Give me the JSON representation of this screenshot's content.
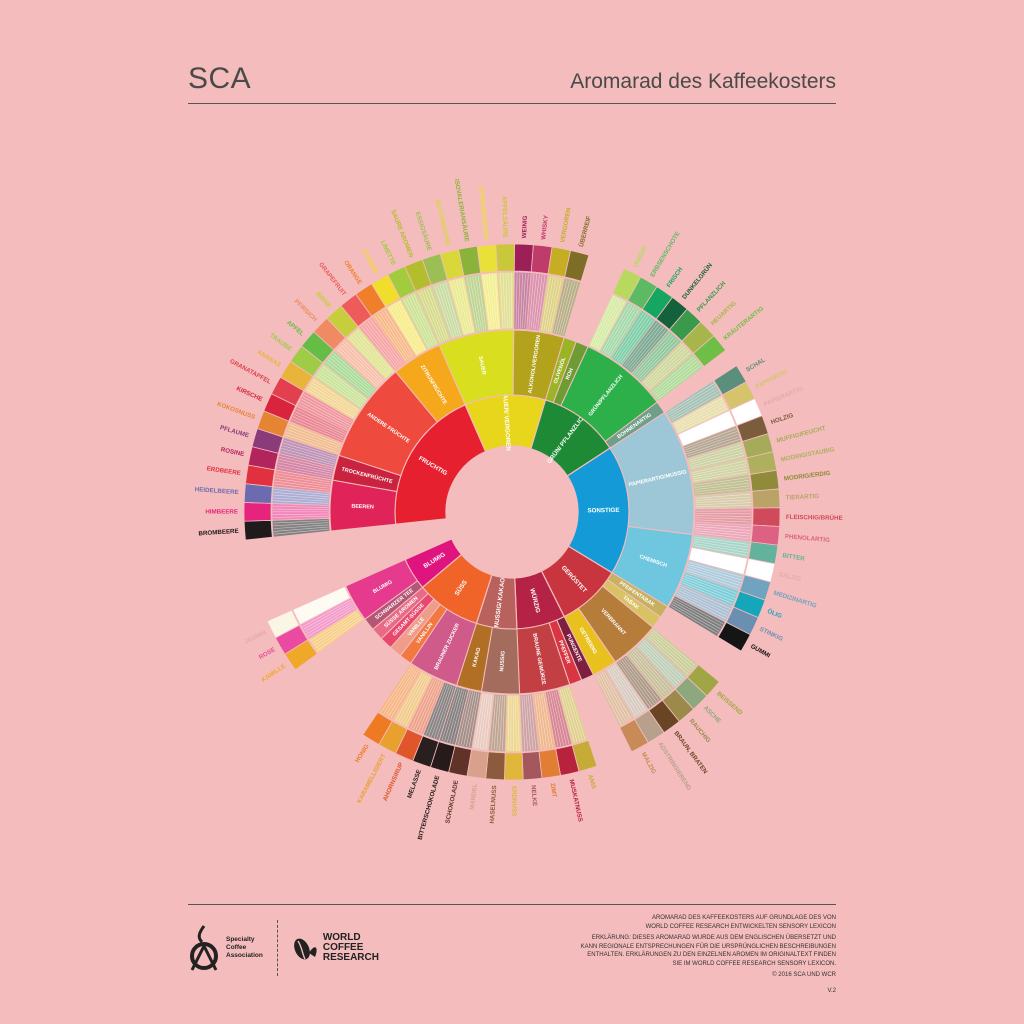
{
  "header": {
    "org": "SCA",
    "title": "Aromarad des Kaffeekosters"
  },
  "footer": {
    "sca_logo_text": [
      "Specialty",
      "Coffee",
      "Association"
    ],
    "wcr_logo_text": [
      "WORLD",
      "COFFEE",
      "RESEARCH"
    ],
    "lines": [
      "AROMARAD DES KAFFEEKOSTERS AUF GRUNDLAGE DES VON",
      "WORLD COFFEE RESEARCH ENTWICKELTEN SENSORY LEXICON"
    ],
    "explanation": [
      "ERKLÄRUNG: DIESES AROMARAD WURDE AUS DEM ENGLISCHEN ÜBERSETZT UND",
      "KANN REGIONALE ENTSPRECHUNGEN FÜR DIE URSPRÜNGLICHEN BESCHREIBUNGEN",
      "ENTHALTEN. ERKLÄRUNGEN ZU DEN EINZELNEN AROMEN IM ORIGINALTEXT FINDEN",
      "SIE IM WORLD COFFEE RESEARCH SENSORY LEXICON."
    ],
    "copyright": "© 2016 SCA UND WCR",
    "version": "V.2"
  },
  "wheel": [
    {
      "name": "FRUCHTIG",
      "color": "#e6202f",
      "children": [
        {
          "name": "BEEREN",
          "color": "#e0245a",
          "children": [
            {
              "name": "BROMBEERE",
              "color": "#1f1a1c"
            },
            {
              "name": "HIMBEERE",
              "color": "#e6237d"
            },
            {
              "name": "HEIDELBEERE",
              "color": "#6c6bb0"
            },
            {
              "name": "ERDBEERE",
              "color": "#e13040"
            }
          ]
        },
        {
          "name": "TROCKENFRÜCHTE",
          "color": "#c9233f",
          "children": [
            {
              "name": "ROSINE",
              "color": "#b3235c"
            },
            {
              "name": "PFLAUME",
              "color": "#8a3b7a"
            }
          ]
        },
        {
          "name": "ANDERE FRÜCHTE",
          "color": "#ee4a3d",
          "children": [
            {
              "name": "KOKOSNUSS",
              "color": "#e58534"
            },
            {
              "name": "KIRSCHE",
              "color": "#d8243c"
            },
            {
              "name": "GRANATAPFEL",
              "color": "#e2404e"
            },
            {
              "name": "ANANAS",
              "color": "#e8b43a"
            },
            {
              "name": "TRAUBE",
              "color": "#9fcc47"
            },
            {
              "name": "APFEL",
              "color": "#64bd45"
            },
            {
              "name": "PFIRSICH",
              "color": "#f08a62"
            },
            {
              "name": "BIRNE",
              "color": "#c7ce3b"
            }
          ]
        },
        {
          "name": "ZITRUSFRÜCHTE",
          "color": "#f6a81c",
          "children": [
            {
              "name": "GRAPEFRUIT",
              "color": "#ef5a5b"
            },
            {
              "name": "ORANGE",
              "color": "#f07f2a"
            },
            {
              "name": "ZITRONE",
              "color": "#f1dd2c"
            },
            {
              "name": "LIMETTE",
              "color": "#a2cb3e"
            }
          ]
        }
      ]
    },
    {
      "name": "SAUER/ VERGOREN",
      "color": "#e8d61c",
      "children": [
        {
          "name": "SAUER",
          "color": "#d9df1e",
          "children": [
            {
              "name": "SAURE AROMEN",
              "color": "#b4bd2e"
            },
            {
              "name": "ESSIGSÄURE",
              "color": "#9cbf55"
            },
            {
              "name": "BUTTERSÄURE",
              "color": "#d8d83a"
            },
            {
              "name": "ISOVALERIANSÄURE",
              "color": "#8bb33b"
            },
            {
              "name": "ZITRONENSÄURE",
              "color": "#e9e13a"
            },
            {
              "name": "APFELSÄURE",
              "color": "#c9c73a"
            }
          ]
        },
        {
          "name": "ALKOHOL/VERGOREN",
          "color": "#b2a21c",
          "children": [
            {
              "name": "WEINIG",
              "color": "#9c1f57"
            },
            {
              "name": "WHISKY",
              "color": "#bf3b6a"
            },
            {
              "name": "VERGOREN",
              "color": "#c5ad24"
            },
            {
              "name": "ÜBERREIF",
              "color": "#7e6d26"
            }
          ]
        }
      ]
    },
    {
      "name": "GRÜN/ PFLANZLICH",
      "color": "#1f8a35",
      "children": [
        {
          "name": "OLIVENÖL",
          "color": "#9ab426",
          "children": []
        },
        {
          "name": "ROH",
          "color": "#6f9b35",
          "children": []
        },
        {
          "name": "GRÜN/PFLANZLICH",
          "color": "#2db04a",
          "children": [
            {
              "name": "UNREIF",
              "color": "#b6d95e"
            },
            {
              "name": "ERBSENSCHOTE",
              "color": "#5cba62"
            },
            {
              "name": "FRISCH",
              "color": "#15a661"
            },
            {
              "name": "DUNKELGRÜN",
              "color": "#13623c"
            },
            {
              "name": "PFLANZLICH",
              "color": "#3a9a4c"
            },
            {
              "name": "HEUARTIG",
              "color": "#a7b64b"
            },
            {
              "name": "KRÄUTERARTIG",
              "color": "#6fbe45"
            }
          ]
        },
        {
          "name": "BOHNENARTIG",
          "color": "#6f9f88",
          "children": []
        }
      ]
    },
    {
      "name": "SONSTIGE",
      "color": "#149bd7",
      "children": [
        {
          "name": "PAPIERARTIG/MUSSIG",
          "color": "#9dc7d6",
          "children": [
            {
              "name": "SCHAL",
              "color": "#5a8f7b"
            },
            {
              "name": "PAPPARTIG",
              "color": "#d5c46b"
            },
            {
              "name": "PAPIERARTIG",
              "color": "#ffffff"
            },
            {
              "name": "HOLZIG",
              "color": "#7b5d3d"
            },
            {
              "name": "MUFFIG/FEUCHT",
              "color": "#a6ab5a"
            },
            {
              "name": "MODRIG/STAUBIG",
              "color": "#aeb05d"
            },
            {
              "name": "MODRIG/ERDIG",
              "color": "#8f8b3a"
            },
            {
              "name": "TIERARTIG",
              "color": "#b9a367"
            },
            {
              "name": "FLEISCHIG/BRÜHE",
              "color": "#cf4a5a"
            },
            {
              "name": "PHENOLARTIG",
              "color": "#dd6182"
            }
          ]
        },
        {
          "name": "CHEMISCH",
          "color": "#6ec7de",
          "children": [
            {
              "name": "BITTER",
              "color": "#63b29b"
            },
            {
              "name": "SALZIG",
              "color": "#ffffff"
            },
            {
              "name": "MEDIZINARTIG",
              "color": "#6fa3bf"
            },
            {
              "name": "ÖLIG",
              "color": "#15a6b9"
            },
            {
              "name": "STINKIG",
              "color": "#6a8fb0"
            },
            {
              "name": "GUMMI",
              "color": "#151515"
            }
          ]
        }
      ]
    },
    {
      "name": "GERÖSTET",
      "color": "#c8353f",
      "children": [
        {
          "name": "PFEIFENTABAK",
          "color": "#c7b160",
          "children": []
        },
        {
          "name": "TABAK",
          "color": "#d9c264",
          "children": []
        },
        {
          "name": "VERBRANNT",
          "color": "#b57c3a",
          "children": [
            {
              "name": "BEISSEND",
              "color": "#a0a646"
            },
            {
              "name": "ASCHE",
              "color": "#8da87e"
            },
            {
              "name": "RAUCHIG",
              "color": "#9b8a4a"
            },
            {
              "name": "BRAUN, BRATEN",
              "color": "#6a4525"
            }
          ]
        },
        {
          "name": "GETREIDIG",
          "color": "#e9c11f",
          "children": [
            {
              "name": "ADSTRINGIEREND",
              "color": "#b8a18c"
            },
            {
              "name": "MALZIG",
              "color": "#c88a57"
            }
          ]
        }
      ]
    },
    {
      "name": "WÜRZIG",
      "color": "#b42345",
      "children": [
        {
          "name": "PUNGENTE",
          "color": "#7d1f3f",
          "children": []
        },
        {
          "name": "PFEFFER",
          "color": "#d93542",
          "children": []
        },
        {
          "name": "BRAUNE GEWÜRZE",
          "color": "#c23f44",
          "children": [
            {
              "name": "ANIS",
              "color": "#c6ab36"
            },
            {
              "name": "MUSKATNUSS",
              "color": "#b7233d"
            },
            {
              "name": "ZIMT",
              "color": "#e17e33"
            },
            {
              "name": "NELKE",
              "color": "#a5575e"
            }
          ]
        }
      ]
    },
    {
      "name": "NUSSIG/ KAKAO",
      "color": "#b9615c",
      "children": [
        {
          "name": "NUSSIG",
          "color": "#a36c5d",
          "children": [
            {
              "name": "ERDNUSS",
              "color": "#e0b73a"
            },
            {
              "name": "HASELNUSS",
              "color": "#8c5b3b"
            },
            {
              "name": "MANDEL",
              "color": "#d9a18c"
            }
          ]
        },
        {
          "name": "KAKAO",
          "color": "#b06f24",
          "children": [
            {
              "name": "SCHOKOLADE",
              "color": "#5f3328"
            },
            {
              "name": "BITTERSCHOKOLADE",
              "color": "#261a1a"
            }
          ]
        }
      ]
    },
    {
      "name": "SÜSS",
      "color": "#f0642a",
      "children": [
        {
          "name": "BRAUNER ZUCKER",
          "color": "#d05b8a",
          "children": [
            {
              "name": "MELASSE",
              "color": "#2a1f1f"
            },
            {
              "name": "AHORNSIRUP",
              "color": "#e0552a"
            },
            {
              "name": "KARAMELLISIERT",
              "color": "#e8a02f"
            },
            {
              "name": "HONIG",
              "color": "#ee7b23"
            }
          ]
        },
        {
          "name": "VANILLIN",
          "color": "#f27840",
          "children": []
        },
        {
          "name": "VANILLE",
          "color": "#ef9c8a",
          "children": []
        },
        {
          "name": "GESAMT-SÜSSE",
          "color": "#e8486d",
          "children": []
        },
        {
          "name": "SÜSSE AROMEN",
          "color": "#e76b86",
          "children": []
        }
      ]
    },
    {
      "name": "BLUMIG",
      "color": "#e0147e",
      "children": [
        {
          "name": "SCHWARZER TEE",
          "color": "#b45675",
          "children": []
        },
        {
          "name": "BLUMIG",
          "color": "#e63a8e",
          "children": [
            {
              "name": "KAMILLE",
              "color": "#f0a829"
            },
            {
              "name": "ROSE",
              "color": "#ea4aa0"
            },
            {
              "name": "JASMIN",
              "color": "#fbf5e6"
            }
          ]
        }
      ]
    }
  ]
}
